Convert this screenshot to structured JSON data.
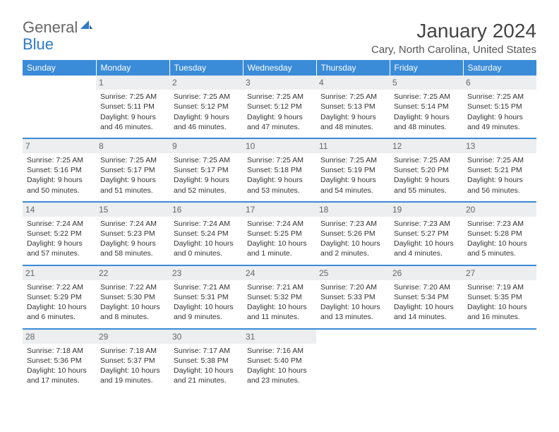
{
  "logo": {
    "text1": "General",
    "text2": "Blue"
  },
  "title": "January 2024",
  "location": "Cary, North Carolina, United States",
  "colors": {
    "header_bg": "#3a8bd8",
    "header_text": "#ffffff",
    "daynum_bg": "#eceeef",
    "daynum_text": "#666666",
    "row_border": "#3a8bd8",
    "body_text": "#333333",
    "logo_gray": "#666666",
    "logo_blue": "#2d7ac6"
  },
  "weekdays": [
    "Sunday",
    "Monday",
    "Tuesday",
    "Wednesday",
    "Thursday",
    "Friday",
    "Saturday"
  ],
  "weeks": [
    [
      {
        "blank": true
      },
      {
        "n": "1",
        "sr": "Sunrise: 7:25 AM",
        "ss": "Sunset: 5:11 PM",
        "dl1": "Daylight: 9 hours",
        "dl2": "and 46 minutes."
      },
      {
        "n": "2",
        "sr": "Sunrise: 7:25 AM",
        "ss": "Sunset: 5:12 PM",
        "dl1": "Daylight: 9 hours",
        "dl2": "and 46 minutes."
      },
      {
        "n": "3",
        "sr": "Sunrise: 7:25 AM",
        "ss": "Sunset: 5:12 PM",
        "dl1": "Daylight: 9 hours",
        "dl2": "and 47 minutes."
      },
      {
        "n": "4",
        "sr": "Sunrise: 7:25 AM",
        "ss": "Sunset: 5:13 PM",
        "dl1": "Daylight: 9 hours",
        "dl2": "and 48 minutes."
      },
      {
        "n": "5",
        "sr": "Sunrise: 7:25 AM",
        "ss": "Sunset: 5:14 PM",
        "dl1": "Daylight: 9 hours",
        "dl2": "and 48 minutes."
      },
      {
        "n": "6",
        "sr": "Sunrise: 7:25 AM",
        "ss": "Sunset: 5:15 PM",
        "dl1": "Daylight: 9 hours",
        "dl2": "and 49 minutes."
      }
    ],
    [
      {
        "n": "7",
        "sr": "Sunrise: 7:25 AM",
        "ss": "Sunset: 5:16 PM",
        "dl1": "Daylight: 9 hours",
        "dl2": "and 50 minutes."
      },
      {
        "n": "8",
        "sr": "Sunrise: 7:25 AM",
        "ss": "Sunset: 5:17 PM",
        "dl1": "Daylight: 9 hours",
        "dl2": "and 51 minutes."
      },
      {
        "n": "9",
        "sr": "Sunrise: 7:25 AM",
        "ss": "Sunset: 5:17 PM",
        "dl1": "Daylight: 9 hours",
        "dl2": "and 52 minutes."
      },
      {
        "n": "10",
        "sr": "Sunrise: 7:25 AM",
        "ss": "Sunset: 5:18 PM",
        "dl1": "Daylight: 9 hours",
        "dl2": "and 53 minutes."
      },
      {
        "n": "11",
        "sr": "Sunrise: 7:25 AM",
        "ss": "Sunset: 5:19 PM",
        "dl1": "Daylight: 9 hours",
        "dl2": "and 54 minutes."
      },
      {
        "n": "12",
        "sr": "Sunrise: 7:25 AM",
        "ss": "Sunset: 5:20 PM",
        "dl1": "Daylight: 9 hours",
        "dl2": "and 55 minutes."
      },
      {
        "n": "13",
        "sr": "Sunrise: 7:25 AM",
        "ss": "Sunset: 5:21 PM",
        "dl1": "Daylight: 9 hours",
        "dl2": "and 56 minutes."
      }
    ],
    [
      {
        "n": "14",
        "sr": "Sunrise: 7:24 AM",
        "ss": "Sunset: 5:22 PM",
        "dl1": "Daylight: 9 hours",
        "dl2": "and 57 minutes."
      },
      {
        "n": "15",
        "sr": "Sunrise: 7:24 AM",
        "ss": "Sunset: 5:23 PM",
        "dl1": "Daylight: 9 hours",
        "dl2": "and 58 minutes."
      },
      {
        "n": "16",
        "sr": "Sunrise: 7:24 AM",
        "ss": "Sunset: 5:24 PM",
        "dl1": "Daylight: 10 hours",
        "dl2": "and 0 minutes."
      },
      {
        "n": "17",
        "sr": "Sunrise: 7:24 AM",
        "ss": "Sunset: 5:25 PM",
        "dl1": "Daylight: 10 hours",
        "dl2": "and 1 minute."
      },
      {
        "n": "18",
        "sr": "Sunrise: 7:23 AM",
        "ss": "Sunset: 5:26 PM",
        "dl1": "Daylight: 10 hours",
        "dl2": "and 2 minutes."
      },
      {
        "n": "19",
        "sr": "Sunrise: 7:23 AM",
        "ss": "Sunset: 5:27 PM",
        "dl1": "Daylight: 10 hours",
        "dl2": "and 4 minutes."
      },
      {
        "n": "20",
        "sr": "Sunrise: 7:23 AM",
        "ss": "Sunset: 5:28 PM",
        "dl1": "Daylight: 10 hours",
        "dl2": "and 5 minutes."
      }
    ],
    [
      {
        "n": "21",
        "sr": "Sunrise: 7:22 AM",
        "ss": "Sunset: 5:29 PM",
        "dl1": "Daylight: 10 hours",
        "dl2": "and 6 minutes."
      },
      {
        "n": "22",
        "sr": "Sunrise: 7:22 AM",
        "ss": "Sunset: 5:30 PM",
        "dl1": "Daylight: 10 hours",
        "dl2": "and 8 minutes."
      },
      {
        "n": "23",
        "sr": "Sunrise: 7:21 AM",
        "ss": "Sunset: 5:31 PM",
        "dl1": "Daylight: 10 hours",
        "dl2": "and 9 minutes."
      },
      {
        "n": "24",
        "sr": "Sunrise: 7:21 AM",
        "ss": "Sunset: 5:32 PM",
        "dl1": "Daylight: 10 hours",
        "dl2": "and 11 minutes."
      },
      {
        "n": "25",
        "sr": "Sunrise: 7:20 AM",
        "ss": "Sunset: 5:33 PM",
        "dl1": "Daylight: 10 hours",
        "dl2": "and 13 minutes."
      },
      {
        "n": "26",
        "sr": "Sunrise: 7:20 AM",
        "ss": "Sunset: 5:34 PM",
        "dl1": "Daylight: 10 hours",
        "dl2": "and 14 minutes."
      },
      {
        "n": "27",
        "sr": "Sunrise: 7:19 AM",
        "ss": "Sunset: 5:35 PM",
        "dl1": "Daylight: 10 hours",
        "dl2": "and 16 minutes."
      }
    ],
    [
      {
        "n": "28",
        "sr": "Sunrise: 7:18 AM",
        "ss": "Sunset: 5:36 PM",
        "dl1": "Daylight: 10 hours",
        "dl2": "and 17 minutes."
      },
      {
        "n": "29",
        "sr": "Sunrise: 7:18 AM",
        "ss": "Sunset: 5:37 PM",
        "dl1": "Daylight: 10 hours",
        "dl2": "and 19 minutes."
      },
      {
        "n": "30",
        "sr": "Sunrise: 7:17 AM",
        "ss": "Sunset: 5:38 PM",
        "dl1": "Daylight: 10 hours",
        "dl2": "and 21 minutes."
      },
      {
        "n": "31",
        "sr": "Sunrise: 7:16 AM",
        "ss": "Sunset: 5:40 PM",
        "dl1": "Daylight: 10 hours",
        "dl2": "and 23 minutes."
      },
      {
        "blank": true
      },
      {
        "blank": true
      },
      {
        "blank": true
      }
    ]
  ]
}
